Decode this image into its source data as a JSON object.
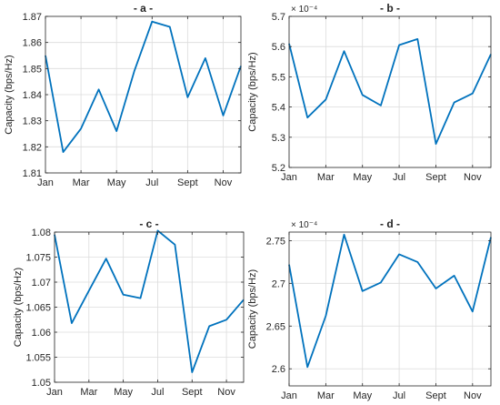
{
  "chart_data": [
    {
      "type": "line",
      "title": "- a -",
      "ylabel": "Capacity (bps/Hz)",
      "exponent": "",
      "xlim": [
        1,
        12
      ],
      "ylim": [
        1.81,
        1.87
      ],
      "yticks": [
        1.81,
        1.82,
        1.83,
        1.84,
        1.85,
        1.86,
        1.87
      ],
      "ytick_labels": [
        "1.81",
        "1.82",
        "1.83",
        "1.84",
        "1.85",
        "1.86",
        "1.87"
      ],
      "xticks": [
        1,
        3,
        5,
        7,
        9,
        11
      ],
      "xtick_labels": [
        "Jan",
        "Mar",
        "May",
        "Jul",
        "Sept",
        "Nov"
      ],
      "grid": true,
      "color": "#0072BD",
      "x": [
        1,
        2,
        3,
        4,
        5,
        6,
        7,
        8,
        9,
        10,
        11,
        12
      ],
      "y": [
        1.855,
        1.818,
        1.827,
        1.842,
        1.826,
        1.849,
        1.868,
        1.866,
        1.839,
        1.854,
        1.832,
        1.851
      ]
    },
    {
      "type": "line",
      "title": "- b -",
      "ylabel": "Capacity (bps/Hz)",
      "exponent": "× 10⁻⁴",
      "xlim": [
        1,
        12
      ],
      "ylim": [
        5.2,
        5.7
      ],
      "yticks": [
        5.2,
        5.3,
        5.4,
        5.5,
        5.6,
        5.7
      ],
      "ytick_labels": [
        "5.2",
        "5.3",
        "5.4",
        "5.5",
        "5.6",
        "5.7"
      ],
      "xticks": [
        1,
        3,
        5,
        7,
        9,
        11
      ],
      "xtick_labels": [
        "Jan",
        "Mar",
        "May",
        "Jul",
        "Sept",
        "Nov"
      ],
      "grid": true,
      "color": "#0072BD",
      "x": [
        1,
        2,
        3,
        4,
        5,
        6,
        7,
        8,
        9,
        10,
        11,
        12
      ],
      "y": [
        5.61,
        5.365,
        5.425,
        5.585,
        5.44,
        5.405,
        5.605,
        5.625,
        5.278,
        5.415,
        5.445,
        5.575
      ]
    },
    {
      "type": "line",
      "title": "- c -",
      "ylabel": "Capacity (bps/Hz)",
      "exponent": "",
      "xlim": [
        1,
        12
      ],
      "ylim": [
        1.05,
        1.08
      ],
      "yticks": [
        1.05,
        1.055,
        1.06,
        1.065,
        1.07,
        1.075,
        1.08
      ],
      "ytick_labels": [
        "1.05",
        "1.055",
        "1.06",
        "1.065",
        "1.07",
        "1.075",
        "1.08"
      ],
      "xticks": [
        1,
        3,
        5,
        7,
        9,
        11
      ],
      "xtick_labels": [
        "Jan",
        "Mar",
        "May",
        "Jul",
        "Sept",
        "Nov"
      ],
      "grid": true,
      "color": "#0072BD",
      "x": [
        1,
        2,
        3,
        4,
        5,
        6,
        7,
        8,
        9,
        10,
        11,
        12
      ],
      "y": [
        1.0795,
        1.0618,
        1.0683,
        1.0747,
        1.0675,
        1.0668,
        1.0803,
        1.0775,
        1.052,
        1.0612,
        1.0625,
        1.0665
      ]
    },
    {
      "type": "line",
      "title": "- d -",
      "ylabel": "Capacity (bps/Hz)",
      "exponent": "× 10⁻⁴",
      "xlim": [
        1,
        12
      ],
      "ylim": [
        2.58,
        2.76
      ],
      "yticks": [
        2.6,
        2.65,
        2.7,
        2.75
      ],
      "ytick_labels": [
        "2.6",
        "2.65",
        "2.7",
        "2.75"
      ],
      "xticks": [
        1,
        3,
        5,
        7,
        9,
        11
      ],
      "xtick_labels": [
        "Jan",
        "Mar",
        "May",
        "Jul",
        "Sept",
        "Nov"
      ],
      "grid": true,
      "color": "#0072BD",
      "x": [
        1,
        2,
        3,
        4,
        5,
        6,
        7,
        8,
        9,
        10,
        11,
        12
      ],
      "y": [
        2.722,
        2.602,
        2.662,
        2.757,
        2.691,
        2.701,
        2.734,
        2.725,
        2.694,
        2.709,
        2.667,
        2.754
      ]
    }
  ]
}
